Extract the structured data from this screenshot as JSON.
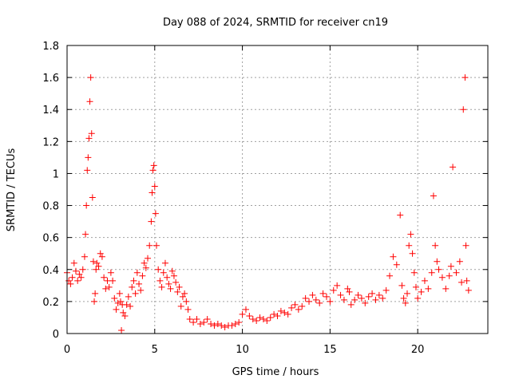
{
  "chart_data": {
    "type": "scatter",
    "title": "Day 088 of 2024, SRMTID for receiver cn19",
    "xlabel": "GPS time / hours",
    "ylabel": "SRMTID / TECUs",
    "xlim": [
      0,
      24
    ],
    "ylim": [
      0,
      1.8
    ],
    "xticks": [
      0,
      5,
      10,
      15,
      20
    ],
    "xtick_labels": [
      "0",
      "5",
      "10",
      "15",
      "20"
    ],
    "yticks": [
      0,
      0.2,
      0.4,
      0.6,
      0.8,
      1,
      1.2,
      1.4,
      1.6,
      1.8
    ],
    "ytick_labels": [
      "0",
      "0.2",
      "0.4",
      "0.6",
      "0.8",
      "1",
      "1.2",
      "1.4",
      "1.6",
      "1.8"
    ],
    "grid": true,
    "marker": "+",
    "color": "#ff0000",
    "series": [
      {
        "name": "cn19",
        "x": [
          0.0,
          0.1,
          0.2,
          0.3,
          0.4,
          0.5,
          0.6,
          0.7,
          0.8,
          0.9,
          1.0,
          1.05,
          1.1,
          1.15,
          1.2,
          1.25,
          1.3,
          1.35,
          1.4,
          1.45,
          1.5,
          1.55,
          1.6,
          1.65,
          1.7,
          1.8,
          1.9,
          2.0,
          2.1,
          2.2,
          2.3,
          2.4,
          2.5,
          2.6,
          2.7,
          2.8,
          2.9,
          3.0,
          3.05,
          3.1,
          3.15,
          3.2,
          3.3,
          3.4,
          3.5,
          3.6,
          3.7,
          3.8,
          3.9,
          4.0,
          4.1,
          4.2,
          4.3,
          4.4,
          4.5,
          4.6,
          4.7,
          4.8,
          4.85,
          4.9,
          4.95,
          5.0,
          5.05,
          5.1,
          5.2,
          5.3,
          5.4,
          5.5,
          5.6,
          5.7,
          5.8,
          5.9,
          6.0,
          6.1,
          6.2,
          6.3,
          6.4,
          6.5,
          6.6,
          6.7,
          6.8,
          6.9,
          7.0,
          7.2,
          7.4,
          7.6,
          7.8,
          8.0,
          8.2,
          8.4,
          8.6,
          8.8,
          9.0,
          9.2,
          9.4,
          9.6,
          9.8,
          10.0,
          10.2,
          10.4,
          10.6,
          10.8,
          11.0,
          11.2,
          11.4,
          11.6,
          11.8,
          12.0,
          12.2,
          12.4,
          12.6,
          12.8,
          13.0,
          13.2,
          13.4,
          13.6,
          13.8,
          14.0,
          14.2,
          14.4,
          14.6,
          14.8,
          15.0,
          15.2,
          15.4,
          15.6,
          15.8,
          16.0,
          16.1,
          16.2,
          16.4,
          16.6,
          16.8,
          17.0,
          17.2,
          17.4,
          17.6,
          17.8,
          18.0,
          18.2,
          18.4,
          18.6,
          18.8,
          19.0,
          19.1,
          19.2,
          19.3,
          19.4,
          19.5,
          19.6,
          19.7,
          19.8,
          19.9,
          20.0,
          20.2,
          20.4,
          20.6,
          20.8,
          20.9,
          21.0,
          21.1,
          21.2,
          21.4,
          21.6,
          21.8,
          21.9,
          22.0,
          22.2,
          22.4,
          22.5,
          22.6,
          22.7,
          22.75,
          22.8,
          22.9
        ],
        "y": [
          0.38,
          0.33,
          0.31,
          0.35,
          0.44,
          0.39,
          0.33,
          0.37,
          0.35,
          0.4,
          0.48,
          0.62,
          0.8,
          1.02,
          1.1,
          1.22,
          1.45,
          1.6,
          1.25,
          0.85,
          0.45,
          0.2,
          0.25,
          0.4,
          0.44,
          0.42,
          0.5,
          0.48,
          0.35,
          0.28,
          0.33,
          0.29,
          0.38,
          0.33,
          0.22,
          0.15,
          0.19,
          0.25,
          0.2,
          0.02,
          0.18,
          0.13,
          0.11,
          0.18,
          0.23,
          0.17,
          0.29,
          0.33,
          0.25,
          0.38,
          0.31,
          0.27,
          0.36,
          0.44,
          0.41,
          0.47,
          0.55,
          0.7,
          0.88,
          1.02,
          1.05,
          0.92,
          0.75,
          0.55,
          0.4,
          0.33,
          0.29,
          0.38,
          0.44,
          0.35,
          0.31,
          0.28,
          0.39,
          0.36,
          0.32,
          0.26,
          0.29,
          0.17,
          0.23,
          0.25,
          0.2,
          0.15,
          0.09,
          0.07,
          0.09,
          0.06,
          0.07,
          0.09,
          0.06,
          0.05,
          0.06,
          0.05,
          0.04,
          0.05,
          0.05,
          0.06,
          0.07,
          0.12,
          0.15,
          0.11,
          0.09,
          0.08,
          0.1,
          0.09,
          0.08,
          0.1,
          0.12,
          0.11,
          0.14,
          0.13,
          0.12,
          0.16,
          0.18,
          0.15,
          0.17,
          0.22,
          0.2,
          0.24,
          0.21,
          0.19,
          0.25,
          0.23,
          0.2,
          0.27,
          0.3,
          0.24,
          0.21,
          0.28,
          0.26,
          0.18,
          0.21,
          0.24,
          0.22,
          0.19,
          0.23,
          0.25,
          0.21,
          0.24,
          0.22,
          0.27,
          0.36,
          0.48,
          0.43,
          0.74,
          0.3,
          0.22,
          0.19,
          0.25,
          0.55,
          0.62,
          0.5,
          0.38,
          0.29,
          0.22,
          0.26,
          0.33,
          0.28,
          0.38,
          0.86,
          0.55,
          0.45,
          0.4,
          0.35,
          0.28,
          0.36,
          0.42,
          1.04,
          0.38,
          0.45,
          0.32,
          1.4,
          1.6,
          0.55,
          0.33,
          0.27
        ]
      }
    ]
  }
}
